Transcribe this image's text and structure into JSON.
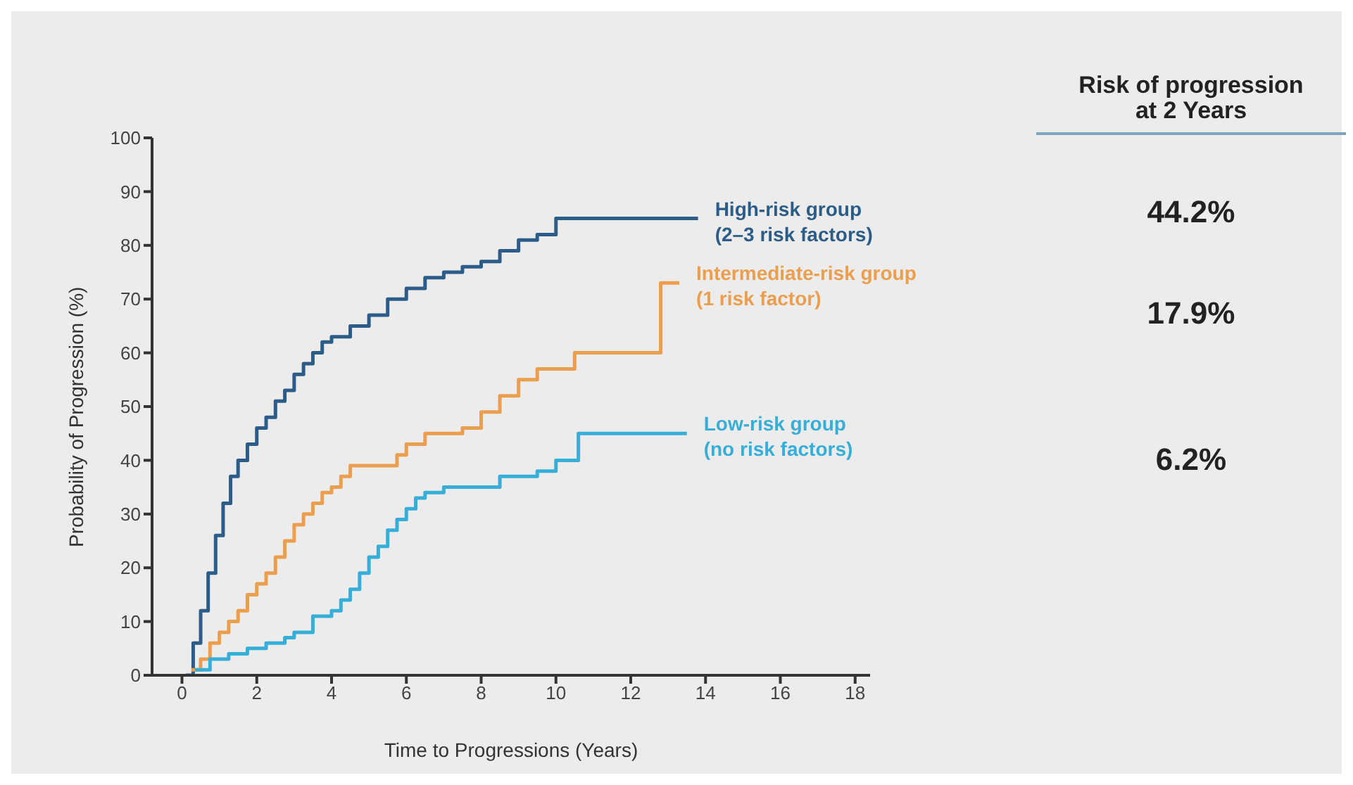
{
  "chart_data": {
    "type": "step",
    "xlabel": "Time to Progressions (Years)",
    "ylabel": "Probability of Progression (%)",
    "xlim": [
      -0.8,
      18.4
    ],
    "xticks": [
      0,
      2,
      4,
      6,
      8,
      10,
      12,
      14,
      16,
      18
    ],
    "ylim": [
      0,
      100
    ],
    "yticks": [
      0,
      10,
      20,
      30,
      40,
      50,
      60,
      70,
      80,
      90,
      100
    ],
    "marker": "none",
    "series": [
      {
        "name": "High-risk group\n(2–3 risk factors)",
        "color": "#2b5d88",
        "x": [
          0.1,
          0.3,
          0.5,
          0.7,
          0.9,
          1.1,
          1.3,
          1.5,
          1.75,
          2,
          2.25,
          2.5,
          2.75,
          3,
          3.25,
          3.5,
          3.75,
          4,
          4.5,
          5,
          5.5,
          6,
          6.5,
          7,
          7.5,
          8,
          8.5,
          9,
          9.5,
          10,
          13.8
        ],
        "values": [
          0,
          6,
          12,
          19,
          26,
          32,
          37,
          40,
          43,
          46,
          48,
          51,
          53,
          56,
          58,
          60,
          62,
          63,
          65,
          67,
          70,
          72,
          74,
          75,
          76,
          77,
          79,
          81,
          82,
          85,
          85
        ]
      },
      {
        "name": "Intermediate-risk group\n(1 risk factor)",
        "color": "#eb9f4e",
        "x": [
          0.25,
          0.5,
          0.75,
          1,
          1.25,
          1.5,
          1.75,
          2,
          2.25,
          2.5,
          2.75,
          3,
          3.25,
          3.5,
          3.75,
          4,
          4.25,
          4.5,
          5.5,
          5.75,
          6,
          6.5,
          7.5,
          8,
          8.5,
          9,
          9.5,
          10.5,
          12.8,
          13.3
        ],
        "values": [
          1,
          3,
          6,
          8,
          10,
          12,
          15,
          17,
          19,
          22,
          25,
          28,
          30,
          32,
          34,
          35,
          37,
          39,
          39,
          41,
          43,
          45,
          46,
          49,
          52,
          55,
          57,
          60,
          73,
          73
        ]
      },
      {
        "name": "Low-risk group\n(no risk factors)",
        "color": "#37aed8",
        "x": [
          0.35,
          0.75,
          1.25,
          1.75,
          2.25,
          2.75,
          3,
          3.5,
          4,
          4.25,
          4.5,
          4.75,
          5,
          5.25,
          5.5,
          5.75,
          6,
          6.25,
          6.5,
          7,
          8,
          8.5,
          9.5,
          10,
          10.6,
          13.5
        ],
        "values": [
          1,
          3,
          4,
          5,
          6,
          7,
          8,
          11,
          12,
          14,
          16,
          19,
          22,
          24,
          27,
          29,
          31,
          33,
          34,
          35,
          35,
          37,
          38,
          40,
          45,
          45
        ]
      }
    ],
    "annotations": [
      "Risk of progression\nat 2 Years",
      "44.2%",
      "17.9%",
      "6.2%"
    ]
  }
}
